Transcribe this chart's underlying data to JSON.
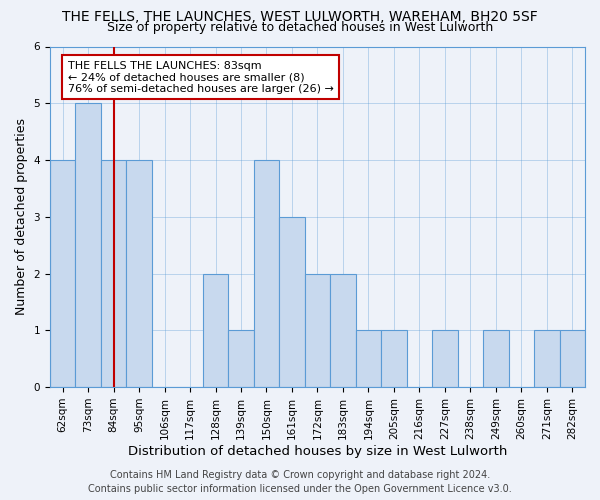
{
  "title": "THE FELLS, THE LAUNCHES, WEST LULWORTH, WAREHAM, BH20 5SF",
  "subtitle": "Size of property relative to detached houses in West Lulworth",
  "xlabel": "Distribution of detached houses by size in West Lulworth",
  "ylabel": "Number of detached properties",
  "footer_line1": "Contains HM Land Registry data © Crown copyright and database right 2024.",
  "footer_line2": "Contains public sector information licensed under the Open Government Licence v3.0.",
  "categories": [
    "62sqm",
    "73sqm",
    "84sqm",
    "95sqm",
    "106sqm",
    "117sqm",
    "128sqm",
    "139sqm",
    "150sqm",
    "161sqm",
    "172sqm",
    "183sqm",
    "194sqm",
    "205sqm",
    "216sqm",
    "227sqm",
    "238sqm",
    "249sqm",
    "260sqm",
    "271sqm",
    "282sqm"
  ],
  "values": [
    4,
    5,
    4,
    4,
    0,
    0,
    2,
    1,
    4,
    3,
    2,
    2,
    1,
    1,
    0,
    1,
    0,
    1,
    0,
    1,
    1
  ],
  "subject_bar_index": 2,
  "bar_color": "#c8d9ee",
  "bar_edge_color": "#5b9bd5",
  "subject_line_color": "#c00000",
  "annotation_text": "THE FELLS THE LAUNCHES: 83sqm\n← 24% of detached houses are smaller (8)\n76% of semi-detached houses are larger (26) →",
  "annotation_box_edge_color": "#c00000",
  "ylim": [
    0,
    6
  ],
  "yticks": [
    0,
    1,
    2,
    3,
    4,
    5,
    6
  ],
  "bg_color": "#eef2f9",
  "grid_color": "#5b9bd5",
  "title_fontsize": 10,
  "subtitle_fontsize": 9,
  "xlabel_fontsize": 9.5,
  "ylabel_fontsize": 9,
  "tick_fontsize": 7.5,
  "annotation_fontsize": 8,
  "footer_fontsize": 7
}
